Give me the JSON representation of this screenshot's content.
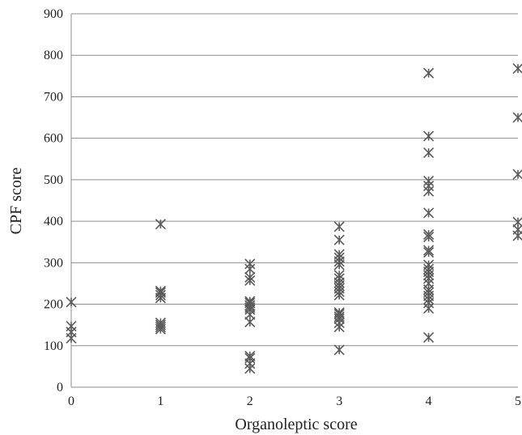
{
  "chart_data": {
    "type": "scatter",
    "title": "",
    "xlabel": "Organoleptic  score",
    "ylabel": "CPF score",
    "xlim": [
      0,
      5
    ],
    "ylim": [
      0,
      900
    ],
    "xticks": [
      "0",
      "1",
      "2",
      "3",
      "4",
      "5"
    ],
    "yticks": [
      "0",
      "100",
      "200",
      "300",
      "400",
      "500",
      "600",
      "700",
      "800",
      "900"
    ],
    "grid": "horizontal",
    "marker": "asterisk",
    "marker_color": "#5a5a5a",
    "points": [
      {
        "x": 0,
        "y": 205
      },
      {
        "x": 0,
        "y": 147
      },
      {
        "x": 0,
        "y": 133
      },
      {
        "x": 0,
        "y": 118
      },
      {
        "x": 1,
        "y": 393
      },
      {
        "x": 1,
        "y": 232
      },
      {
        "x": 1,
        "y": 228
      },
      {
        "x": 1,
        "y": 222
      },
      {
        "x": 1,
        "y": 215
      },
      {
        "x": 1,
        "y": 155
      },
      {
        "x": 1,
        "y": 150
      },
      {
        "x": 1,
        "y": 145
      },
      {
        "x": 1,
        "y": 140
      },
      {
        "x": 2,
        "y": 297
      },
      {
        "x": 2,
        "y": 285
      },
      {
        "x": 2,
        "y": 265
      },
      {
        "x": 2,
        "y": 257
      },
      {
        "x": 2,
        "y": 207
      },
      {
        "x": 2,
        "y": 203
      },
      {
        "x": 2,
        "y": 197
      },
      {
        "x": 2,
        "y": 192
      },
      {
        "x": 2,
        "y": 187
      },
      {
        "x": 2,
        "y": 175
      },
      {
        "x": 2,
        "y": 157
      },
      {
        "x": 2,
        "y": 75
      },
      {
        "x": 2,
        "y": 70
      },
      {
        "x": 2,
        "y": 57
      },
      {
        "x": 2,
        "y": 45
      },
      {
        "x": 3,
        "y": 387
      },
      {
        "x": 3,
        "y": 355
      },
      {
        "x": 3,
        "y": 320
      },
      {
        "x": 3,
        "y": 312
      },
      {
        "x": 3,
        "y": 303
      },
      {
        "x": 3,
        "y": 295
      },
      {
        "x": 3,
        "y": 270
      },
      {
        "x": 3,
        "y": 262
      },
      {
        "x": 3,
        "y": 252
      },
      {
        "x": 3,
        "y": 245
      },
      {
        "x": 3,
        "y": 238
      },
      {
        "x": 3,
        "y": 230
      },
      {
        "x": 3,
        "y": 222
      },
      {
        "x": 3,
        "y": 180
      },
      {
        "x": 3,
        "y": 176
      },
      {
        "x": 3,
        "y": 170
      },
      {
        "x": 3,
        "y": 165
      },
      {
        "x": 3,
        "y": 155
      },
      {
        "x": 3,
        "y": 145
      },
      {
        "x": 3,
        "y": 90
      },
      {
        "x": 4,
        "y": 757
      },
      {
        "x": 4,
        "y": 605
      },
      {
        "x": 4,
        "y": 565
      },
      {
        "x": 4,
        "y": 497
      },
      {
        "x": 4,
        "y": 485
      },
      {
        "x": 4,
        "y": 472
      },
      {
        "x": 4,
        "y": 420
      },
      {
        "x": 4,
        "y": 368
      },
      {
        "x": 4,
        "y": 362
      },
      {
        "x": 4,
        "y": 330
      },
      {
        "x": 4,
        "y": 325
      },
      {
        "x": 4,
        "y": 295
      },
      {
        "x": 4,
        "y": 285
      },
      {
        "x": 4,
        "y": 278
      },
      {
        "x": 4,
        "y": 270
      },
      {
        "x": 4,
        "y": 262
      },
      {
        "x": 4,
        "y": 250
      },
      {
        "x": 4,
        "y": 235
      },
      {
        "x": 4,
        "y": 228
      },
      {
        "x": 4,
        "y": 220
      },
      {
        "x": 4,
        "y": 212
      },
      {
        "x": 4,
        "y": 203
      },
      {
        "x": 4,
        "y": 190
      },
      {
        "x": 4,
        "y": 120
      },
      {
        "x": 5,
        "y": 768
      },
      {
        "x": 5,
        "y": 650
      },
      {
        "x": 5,
        "y": 513
      },
      {
        "x": 5,
        "y": 398
      },
      {
        "x": 5,
        "y": 380
      },
      {
        "x": 5,
        "y": 365
      }
    ]
  }
}
